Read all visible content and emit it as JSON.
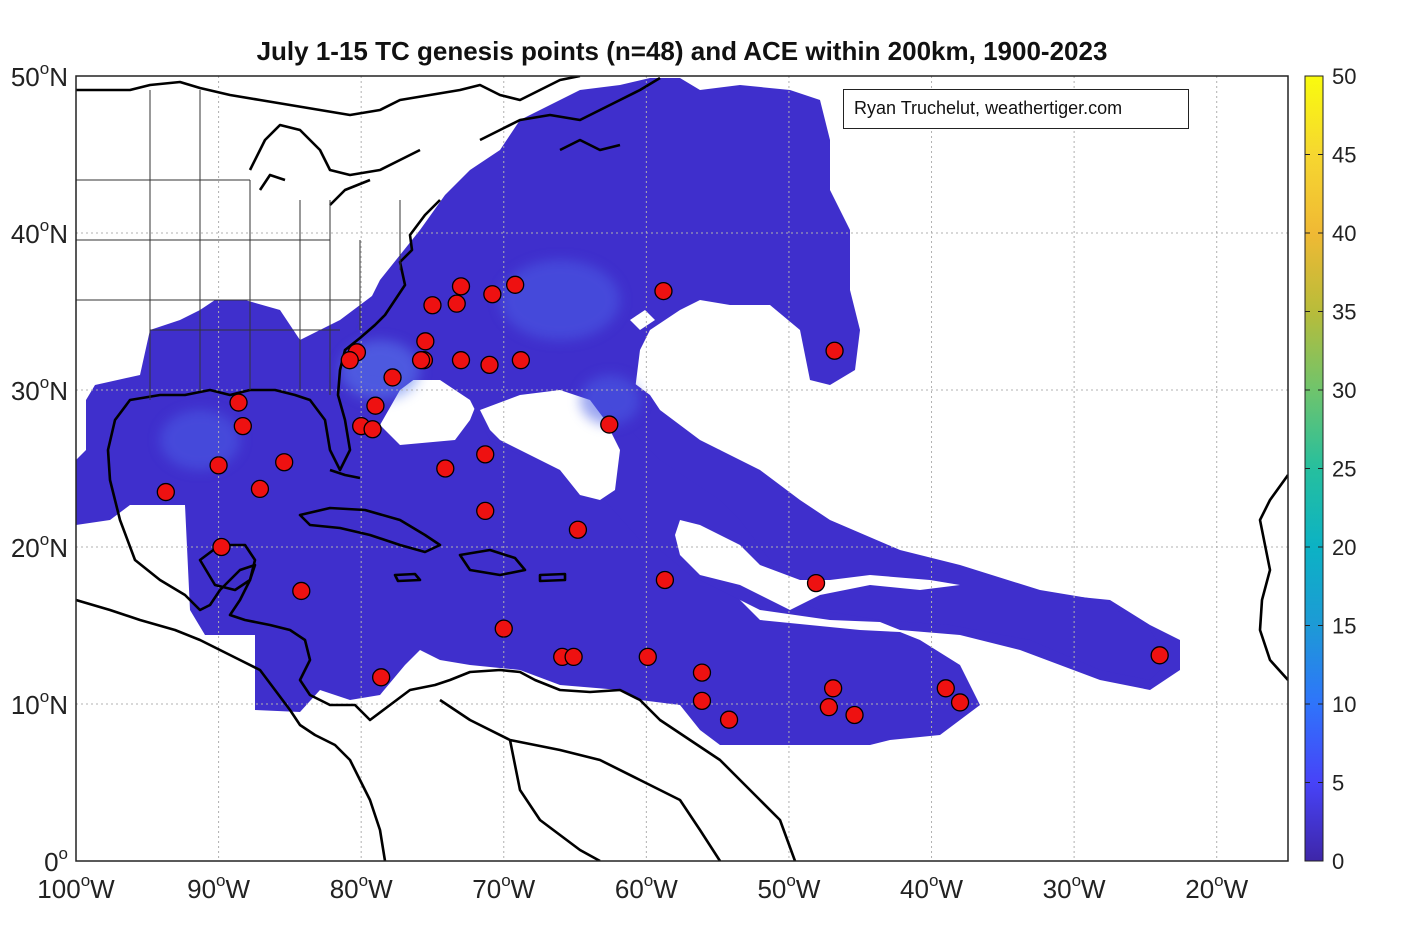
{
  "title": "July 1-15 TC genesis points (n=48) and ACE within 200km, 1900-2023",
  "credit": "Ryan Truchelut, weathertiger.com",
  "axes": {
    "lon_range": [
      -100,
      -15
    ],
    "lat_range": [
      0,
      50
    ],
    "x_ticks": [
      {
        "lon": -100,
        "label": "100",
        "hemi": "W"
      },
      {
        "lon": -90,
        "label": "90",
        "hemi": "W"
      },
      {
        "lon": -80,
        "label": "80",
        "hemi": "W"
      },
      {
        "lon": -70,
        "label": "70",
        "hemi": "W"
      },
      {
        "lon": -60,
        "label": "60",
        "hemi": "W"
      },
      {
        "lon": -50,
        "label": "50",
        "hemi": "W"
      },
      {
        "lon": -40,
        "label": "40",
        "hemi": "W"
      },
      {
        "lon": -30,
        "label": "30",
        "hemi": "W"
      },
      {
        "lon": -20,
        "label": "20",
        "hemi": "W"
      }
    ],
    "y_ticks": [
      {
        "lat": 0,
        "label": "0",
        "hemi": ""
      },
      {
        "lat": 10,
        "label": "10",
        "hemi": "N"
      },
      {
        "lat": 20,
        "label": "20",
        "hemi": "N"
      },
      {
        "lat": 30,
        "label": "30",
        "hemi": "N"
      },
      {
        "lat": 40,
        "label": "40",
        "hemi": "N"
      },
      {
        "lat": 50,
        "label": "50",
        "hemi": "N"
      }
    ],
    "degree_symbol": "o"
  },
  "colorbar": {
    "min": 0,
    "max": 50,
    "ticks": [
      "0",
      "5",
      "10",
      "15",
      "20",
      "25",
      "30",
      "35",
      "40",
      "45",
      "50"
    ],
    "colors": [
      "#3e26a8",
      "#4743f8",
      "#2f74fb",
      "#1d9ad6",
      "#0cb2c4",
      "#26bf9e",
      "#6fc46c",
      "#b8bc3a",
      "#f0b934",
      "#f6d730",
      "#f9fb0e"
    ]
  },
  "colors": {
    "ace_field": "#3f2fcc",
    "ace_field_high": "#4a6ae8",
    "genesis_point": "#ee1111",
    "land_outline": "#000000",
    "state_border": "#333333",
    "grid": "#b0b0b0"
  },
  "genesis_points": [
    [
      -73.0,
      36.6
    ],
    [
      -69.2,
      36.7
    ],
    [
      -70.8,
      36.1
    ],
    [
      -73.3,
      35.5
    ],
    [
      -75.0,
      35.4
    ],
    [
      -58.8,
      36.3
    ],
    [
      -46.8,
      32.5
    ],
    [
      -75.5,
      33.1
    ],
    [
      -75.6,
      31.9
    ],
    [
      -75.8,
      31.9
    ],
    [
      -73.0,
      31.9
    ],
    [
      -71.0,
      31.6
    ],
    [
      -68.8,
      31.9
    ],
    [
      -80.3,
      32.4
    ],
    [
      -80.8,
      31.9
    ],
    [
      -77.8,
      30.8
    ],
    [
      -88.6,
      29.2
    ],
    [
      -79.0,
      29.0
    ],
    [
      -88.3,
      27.7
    ],
    [
      -80.0,
      27.7
    ],
    [
      -79.2,
      27.5
    ],
    [
      -62.6,
      27.8
    ],
    [
      -71.3,
      25.9
    ],
    [
      -74.1,
      25.0
    ],
    [
      -90.0,
      25.2
    ],
    [
      -85.4,
      25.4
    ],
    [
      -87.1,
      23.7
    ],
    [
      -93.7,
      23.5
    ],
    [
      -71.3,
      22.3
    ],
    [
      -64.8,
      21.1
    ],
    [
      -89.8,
      20.0
    ],
    [
      -58.7,
      17.9
    ],
    [
      -48.1,
      17.7
    ],
    [
      -84.2,
      17.2
    ],
    [
      -70.0,
      14.8
    ],
    [
      -65.9,
      13.0
    ],
    [
      -65.1,
      13.0
    ],
    [
      -59.9,
      13.0
    ],
    [
      -24.0,
      13.1
    ],
    [
      -56.1,
      12.0
    ],
    [
      -78.6,
      11.7
    ],
    [
      -46.9,
      11.0
    ],
    [
      -39.0,
      11.0
    ],
    [
      -56.1,
      10.2
    ],
    [
      -38.0,
      10.1
    ],
    [
      -47.2,
      9.8
    ],
    [
      -45.4,
      9.3
    ],
    [
      -54.2,
      9.0
    ]
  ]
}
